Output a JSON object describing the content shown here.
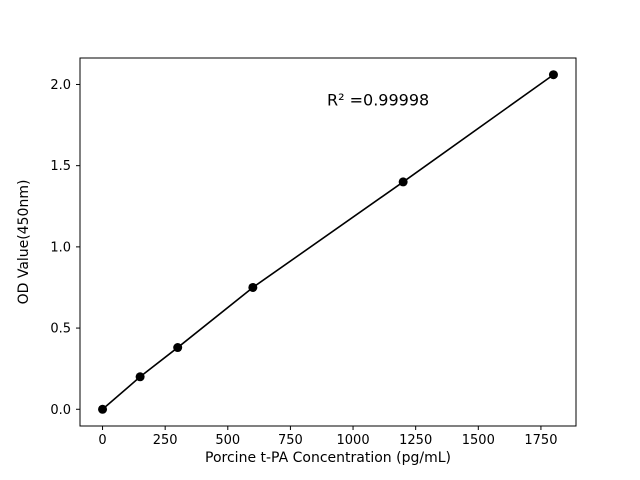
{
  "chart_data": {
    "type": "line",
    "title": "",
    "xlabel": "Porcine t-PA Concentration (pg/mL)",
    "ylabel": "OD Value(450nm)",
    "x": [
      0,
      150,
      300,
      600,
      1200,
      1800
    ],
    "y": [
      0.0,
      0.2,
      0.38,
      0.75,
      1.4,
      2.06
    ],
    "xlim": [
      -90,
      1890
    ],
    "ylim": [
      -0.103,
      2.163
    ],
    "xticks": [
      0,
      250,
      500,
      750,
      1000,
      1250,
      1500,
      1750
    ],
    "xtick_labels": [
      "0",
      "250",
      "500",
      "750",
      "1000",
      "1250",
      "1500",
      "1750"
    ],
    "yticks": [
      0.0,
      0.5,
      1.0,
      1.5,
      2.0
    ],
    "ytick_labels": [
      "0.0",
      "0.5",
      "1.0",
      "1.5",
      "2.0"
    ],
    "annotation": {
      "text": "R² =0.99998",
      "x": 1100,
      "y": 1.87
    },
    "line_color": "#000000",
    "marker_color": "#000000",
    "axis_color": "#000000",
    "background": "#ffffff",
    "grid": false,
    "legend": "none"
  }
}
